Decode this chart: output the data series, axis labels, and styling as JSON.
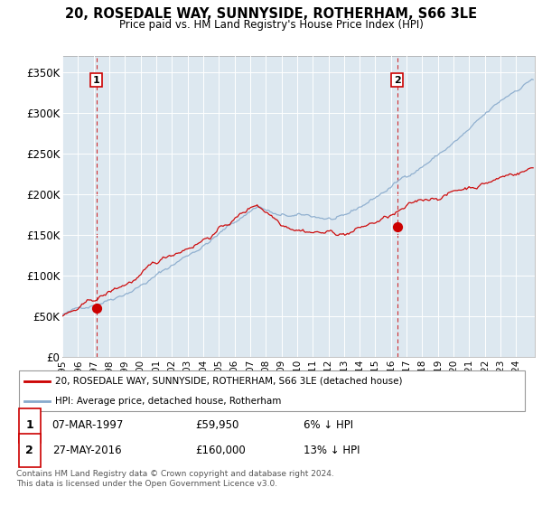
{
  "title": "20, ROSEDALE WAY, SUNNYSIDE, ROTHERHAM, S66 3LE",
  "subtitle": "Price paid vs. HM Land Registry's House Price Index (HPI)",
  "ylabel_ticks": [
    "£0",
    "£50K",
    "£100K",
    "£150K",
    "£200K",
    "£250K",
    "£300K",
    "£350K"
  ],
  "ytick_values": [
    0,
    50000,
    100000,
    150000,
    200000,
    250000,
    300000,
    350000
  ],
  "ylim": [
    0,
    370000
  ],
  "xlim_start": 1995.0,
  "xlim_end": 2025.2,
  "sale1_x": 1997.18,
  "sale1_y": 59950,
  "sale2_x": 2016.4,
  "sale2_y": 160000,
  "sale1_label": "1",
  "sale2_label": "2",
  "legend_line1": "20, ROSEDALE WAY, SUNNYSIDE, ROTHERHAM, S66 3LE (detached house)",
  "legend_line2": "HPI: Average price, detached house, Rotherham",
  "table_row1_num": "1",
  "table_row1_date": "07-MAR-1997",
  "table_row1_price": "£59,950",
  "table_row1_hpi": "6% ↓ HPI",
  "table_row2_num": "2",
  "table_row2_date": "27-MAY-2016",
  "table_row2_price": "£160,000",
  "table_row2_hpi": "13% ↓ HPI",
  "footnote": "Contains HM Land Registry data © Crown copyright and database right 2024.\nThis data is licensed under the Open Government Licence v3.0.",
  "line_color_red": "#cc0000",
  "line_color_blue": "#88aacc",
  "bg_color": "#ffffff",
  "plot_bg_color": "#dde8f0",
  "grid_color": "#ffffff"
}
